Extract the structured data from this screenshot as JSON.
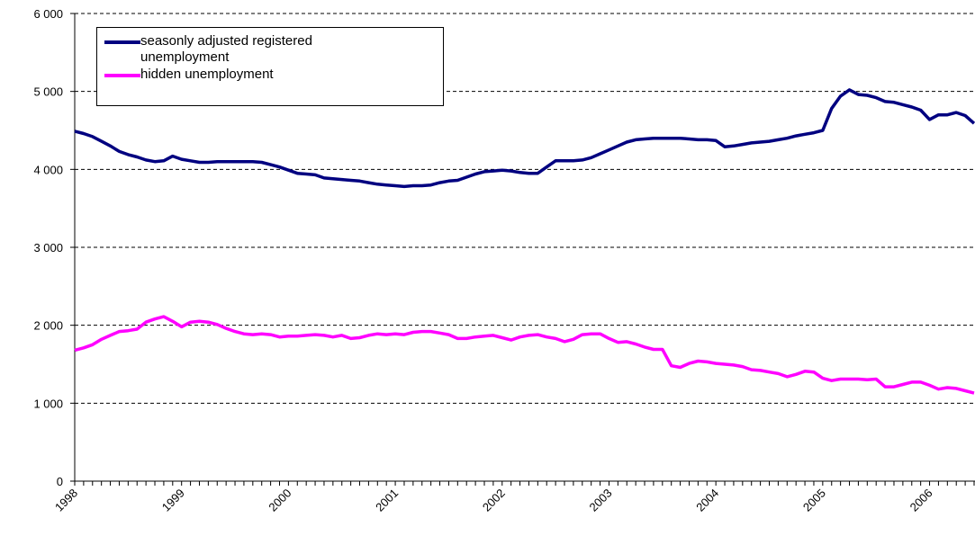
{
  "chart_data": {
    "type": "line",
    "categories": [
      "1998",
      null,
      null,
      null,
      null,
      null,
      null,
      null,
      null,
      null,
      null,
      null,
      "1999",
      null,
      null,
      null,
      null,
      null,
      null,
      null,
      null,
      null,
      null,
      null,
      "2000",
      null,
      null,
      null,
      null,
      null,
      null,
      null,
      null,
      null,
      null,
      null,
      "2001",
      null,
      null,
      null,
      null,
      null,
      null,
      null,
      null,
      null,
      null,
      null,
      "2002",
      null,
      null,
      null,
      null,
      null,
      null,
      null,
      null,
      null,
      null,
      null,
      "2003",
      null,
      null,
      null,
      null,
      null,
      null,
      null,
      null,
      null,
      null,
      null,
      "2004",
      null,
      null,
      null,
      null,
      null,
      null,
      null,
      null,
      null,
      null,
      null,
      "2005",
      null,
      null,
      null,
      null,
      null,
      null,
      null,
      null,
      null,
      null,
      null,
      "2006",
      null,
      null,
      null,
      null,
      null
    ],
    "series": [
      {
        "name": "seasonly adjusted registered unemployment",
        "color": "#000080",
        "values": [
          4490,
          4460,
          4420,
          4360,
          4300,
          4230,
          4190,
          4160,
          4120,
          4100,
          4110,
          4170,
          4130,
          4110,
          4090,
          4090,
          4100,
          4100,
          4100,
          4100,
          4100,
          4090,
          4060,
          4030,
          3990,
          3950,
          3940,
          3930,
          3890,
          3880,
          3870,
          3860,
          3850,
          3830,
          3810,
          3800,
          3790,
          3780,
          3790,
          3790,
          3800,
          3830,
          3850,
          3860,
          3900,
          3940,
          3970,
          3980,
          3990,
          3980,
          3960,
          3950,
          3950,
          4030,
          4110,
          4110,
          4110,
          4120,
          4150,
          4200,
          4250,
          4300,
          4350,
          4380,
          4390,
          4400,
          4400,
          4400,
          4400,
          4390,
          4380,
          4380,
          4370,
          4290,
          4300,
          4320,
          4340,
          4350,
          4360,
          4380,
          4400,
          4430,
          4450,
          4470,
          4500,
          4780,
          4940,
          5020,
          4960,
          4950,
          4920,
          4870,
          4860,
          4830,
          4800,
          4760,
          4640,
          4700,
          4700,
          4730,
          4690,
          4590
        ]
      },
      {
        "name": "hidden unemployment",
        "color": "#ff00ff",
        "values": [
          1680,
          1710,
          1750,
          1820,
          1870,
          1920,
          1930,
          1950,
          2040,
          2080,
          2110,
          2050,
          1980,
          2040,
          2050,
          2040,
          2010,
          1960,
          1920,
          1890,
          1880,
          1890,
          1880,
          1850,
          1860,
          1860,
          1870,
          1880,
          1870,
          1850,
          1870,
          1830,
          1840,
          1870,
          1890,
          1880,
          1890,
          1880,
          1910,
          1920,
          1920,
          1900,
          1880,
          1830,
          1830,
          1850,
          1860,
          1870,
          1840,
          1810,
          1850,
          1870,
          1880,
          1850,
          1830,
          1790,
          1820,
          1880,
          1890,
          1890,
          1830,
          1780,
          1790,
          1760,
          1720,
          1690,
          1690,
          1480,
          1460,
          1510,
          1540,
          1530,
          1510,
          1500,
          1490,
          1470,
          1430,
          1420,
          1400,
          1380,
          1340,
          1370,
          1410,
          1400,
          1320,
          1290,
          1310,
          1310,
          1310,
          1300,
          1310,
          1210,
          1210,
          1240,
          1270,
          1270,
          1230,
          1180,
          1200,
          1190,
          1160,
          1130
        ]
      }
    ],
    "ylim": [
      0,
      6000
    ],
    "yticks": [
      0,
      {
        "value": 1000,
        "label": "1 000"
      },
      {
        "value": 2000,
        "label": "2 000"
      },
      {
        "value": 3000,
        "label": "3 000"
      },
      {
        "value": 4000,
        "label": "4 000"
      },
      {
        "value": 5000,
        "label": "5 000"
      },
      {
        "value": 6000,
        "label": "6 000"
      }
    ],
    "grid": true
  }
}
